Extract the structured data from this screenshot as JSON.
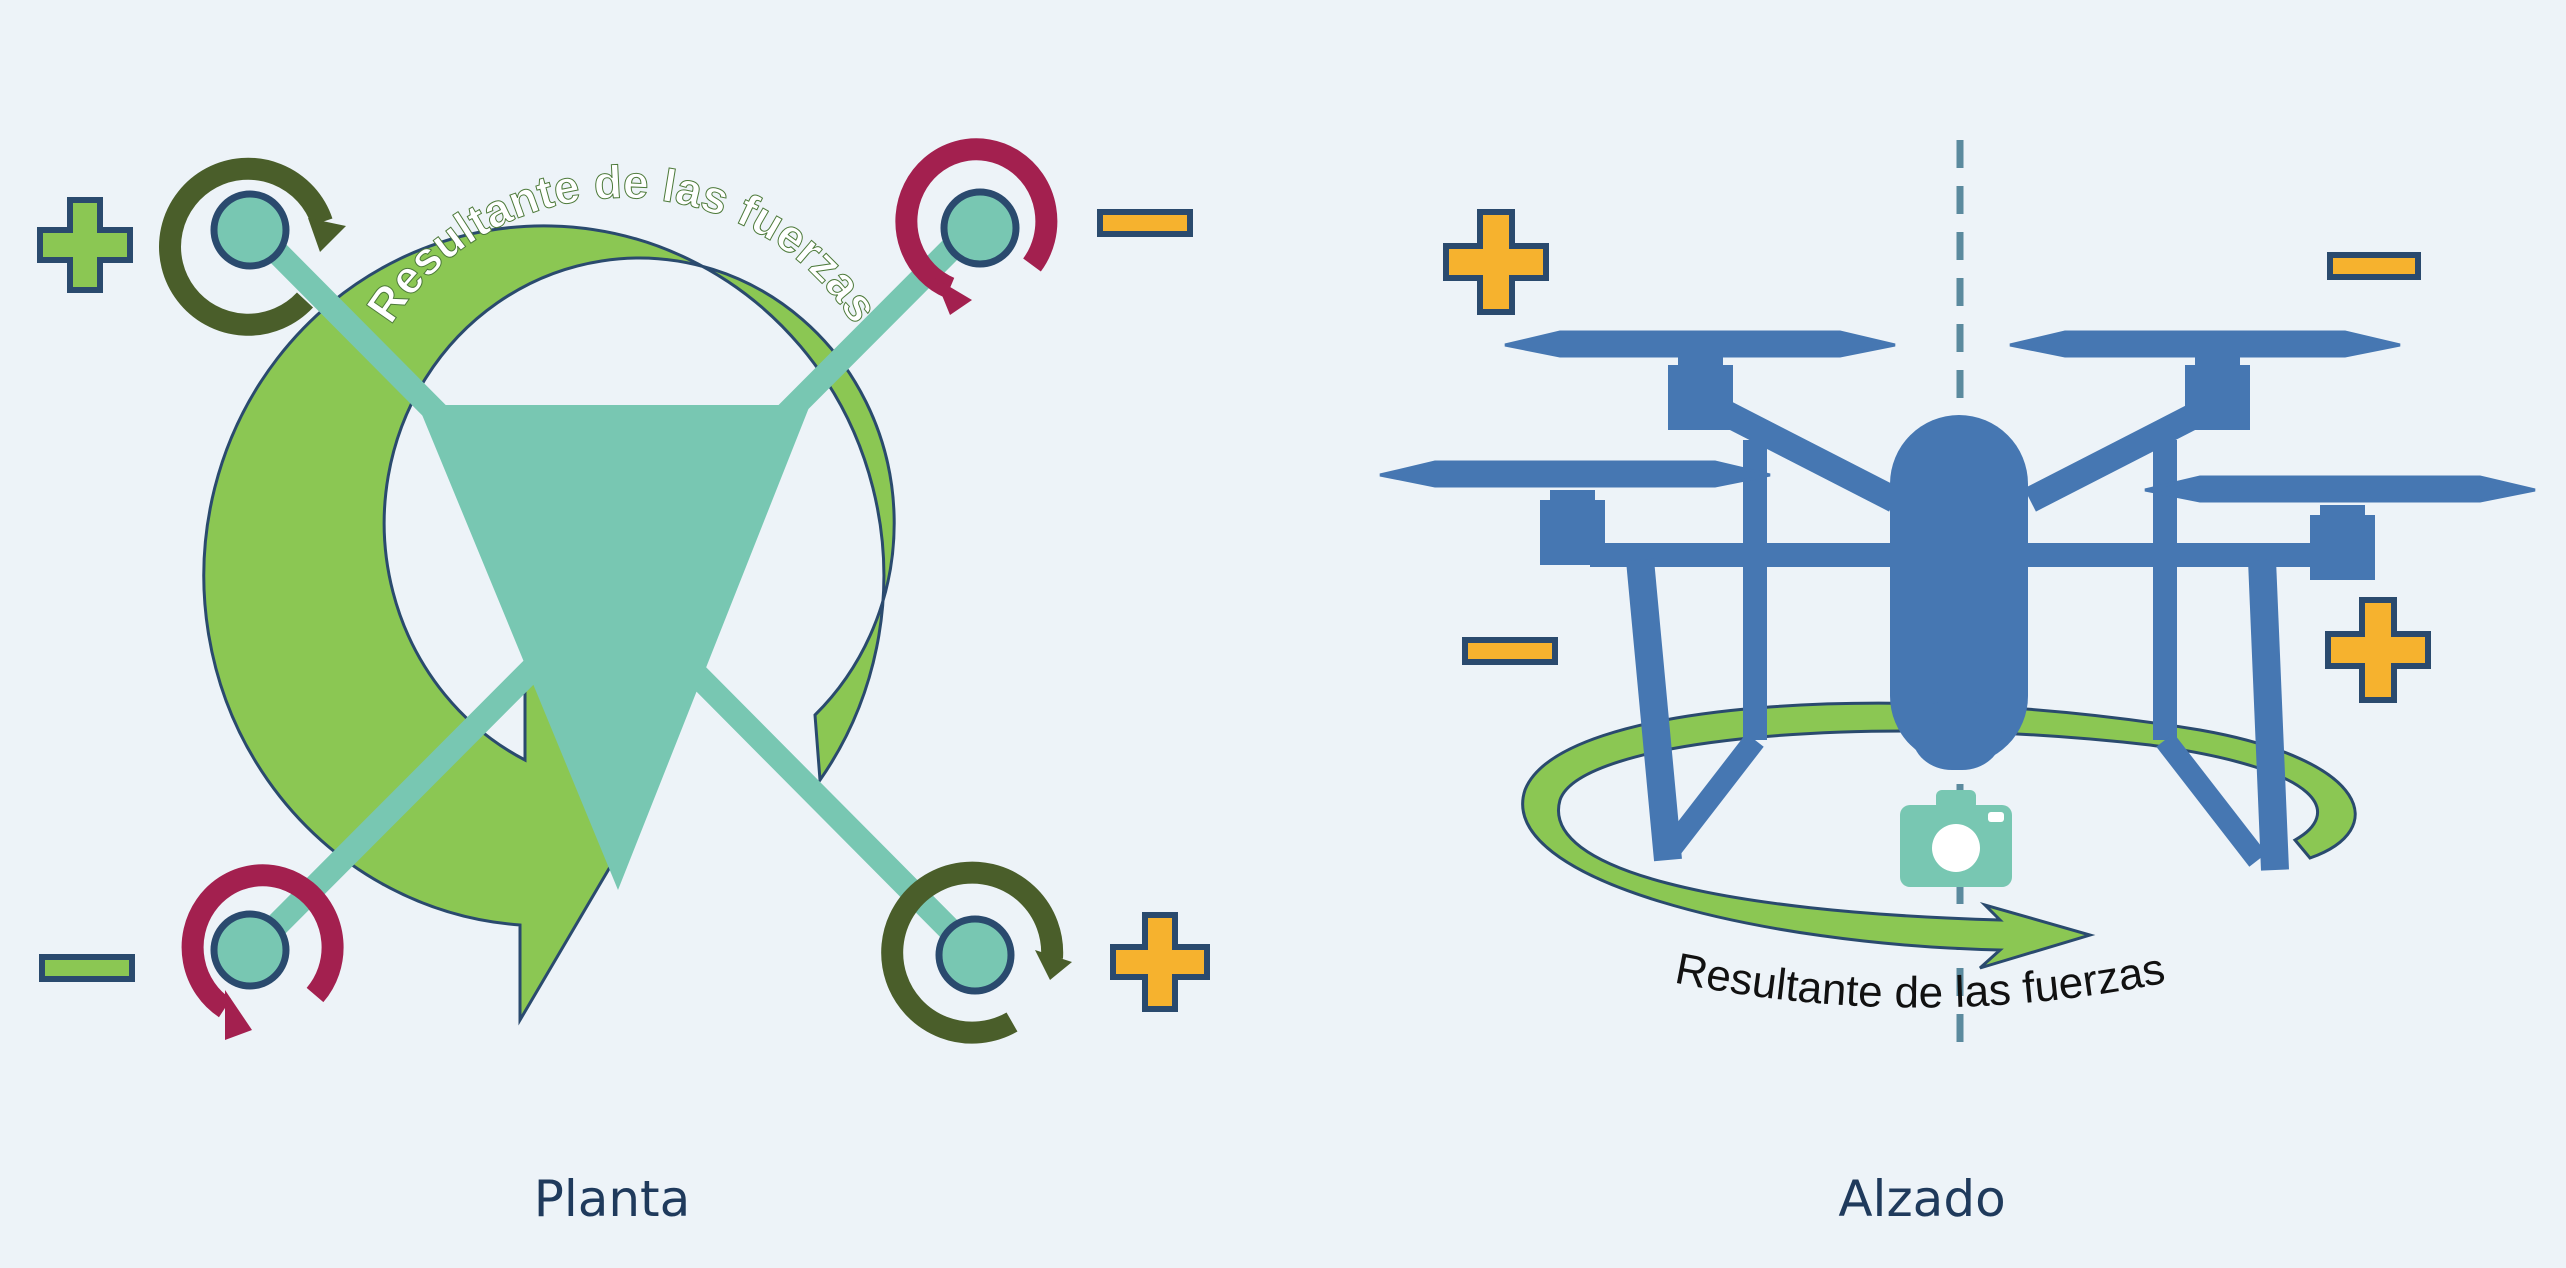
{
  "plan_view": {
    "caption": "Planta",
    "resultant_label": "Resultante de las fuerzas",
    "rotors": [
      {
        "position": "top-left",
        "rotation": "clockwise",
        "sign": "+",
        "color": "#4a5e2a"
      },
      {
        "position": "top-right",
        "rotation": "counterclockwise",
        "sign": "−",
        "color": "#a3204f"
      },
      {
        "position": "bottom-left",
        "rotation": "counterclockwise",
        "sign": "−",
        "color": "#a3204f"
      },
      {
        "position": "bottom-right",
        "rotation": "clockwise",
        "sign": "+",
        "color": "#4a5e2a"
      }
    ]
  },
  "elevation_view": {
    "caption": "Alzado",
    "resultant_label": "Resultante de las fuerzas",
    "signs": {
      "front_left": "+",
      "front_right": "−",
      "rear_left": "−",
      "rear_right": "+"
    }
  },
  "colors": {
    "background": "#edf3f8",
    "arrow_green": "#8bc753",
    "body_teal": "#78c7b2",
    "drone_blue": "#4677b2",
    "cw_rotor": "#4a5e2a",
    "ccw_rotor": "#a3204f",
    "plus_sign": "#f6b22e",
    "plus_sign_alt": "#8bc753",
    "outline": "#2a4a6e",
    "caption": "#1f3a5c"
  }
}
